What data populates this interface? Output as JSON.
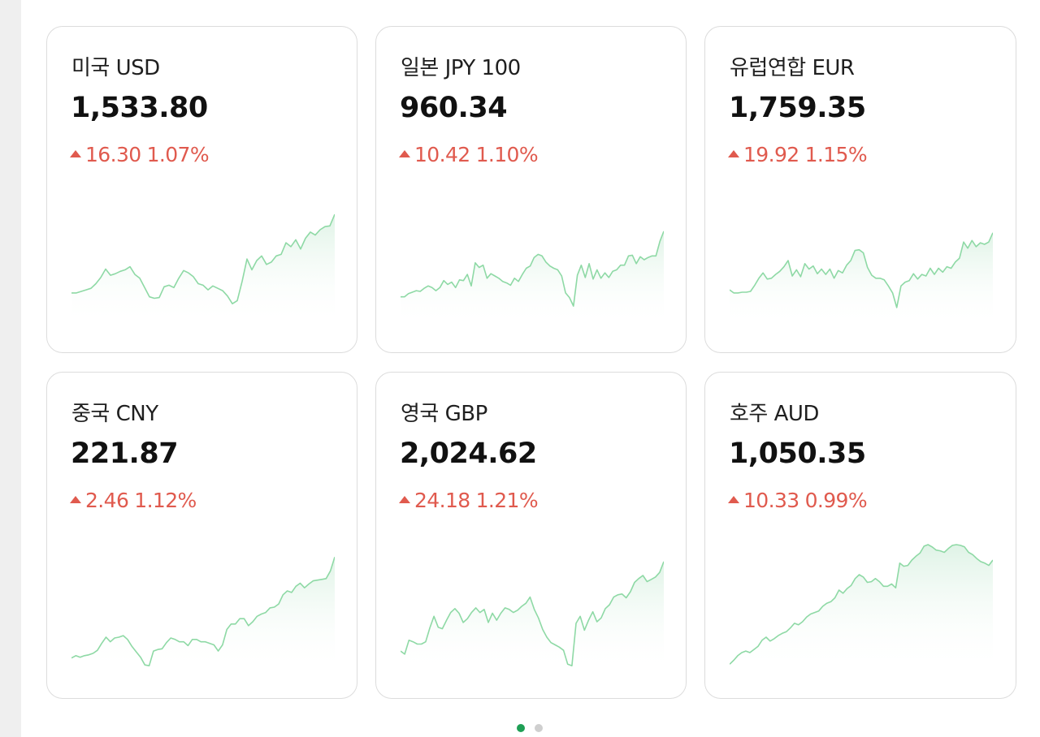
{
  "colors": {
    "up": "#e05a4e",
    "line": "#8ed9a5",
    "fill": "#dff3e6",
    "dot_active": "#1f9f55",
    "dot_inactive": "#cfcfcf"
  },
  "cards": [
    {
      "title": "미국 USD",
      "rate": "1,533.80",
      "change": "16.30",
      "change_pct": "1.07%",
      "direction": "up",
      "trend": [
        38,
        38,
        40,
        42,
        44,
        50,
        58,
        69,
        61,
        63,
        66,
        68,
        72,
        62,
        57,
        45,
        33,
        31,
        32,
        46,
        48,
        45,
        57,
        67,
        64,
        59,
        50,
        48,
        42,
        47,
        44,
        41,
        34,
        24,
        28,
        53,
        82,
        68,
        80,
        86,
        75,
        78,
        86,
        88,
        103,
        98,
        107,
        95,
        109,
        117,
        113,
        120,
        124,
        125,
        140
      ]
    },
    {
      "title": "일본 JPY 100",
      "rate": "960.34",
      "change": "10.42",
      "change_pct": "1.10%",
      "direction": "up",
      "trend": [
        33,
        33,
        37,
        39,
        41,
        40,
        44,
        47,
        45,
        41,
        45,
        54,
        49,
        52,
        45,
        55,
        54,
        62,
        47,
        77,
        71,
        74,
        57,
        63,
        60,
        57,
        53,
        51,
        48,
        57,
        53,
        62,
        70,
        73,
        84,
        88,
        86,
        78,
        73,
        70,
        68,
        60,
        38,
        32,
        21,
        61,
        74,
        58,
        76,
        56,
        68,
        57,
        64,
        58,
        66,
        68,
        74,
        74,
        86,
        87,
        76,
        85,
        81,
        84,
        86,
        86,
        105,
        118
      ]
    },
    {
      "title": "유럽연합 EUR",
      "rate": "1,759.35",
      "change": "19.92",
      "change_pct": "1.15%",
      "direction": "up",
      "trend": [
        42,
        38,
        38,
        39,
        39,
        40,
        48,
        57,
        64,
        56,
        57,
        62,
        66,
        72,
        80,
        60,
        68,
        59,
        76,
        69,
        73,
        63,
        69,
        62,
        69,
        57,
        67,
        64,
        74,
        80,
        93,
        94,
        90,
        71,
        61,
        57,
        57,
        55,
        47,
        38,
        19,
        47,
        52,
        54,
        63,
        56,
        62,
        60,
        70,
        62,
        70,
        65,
        72,
        70,
        78,
        83,
        104,
        96,
        106,
        98,
        103,
        101,
        104,
        116
      ]
    },
    {
      "title": "중국 CNY",
      "rate": "221.87",
      "change": "2.46",
      "change_pct": "1.12%",
      "direction": "up",
      "trend": [
        13,
        16,
        14,
        16,
        17,
        19,
        23,
        32,
        40,
        34,
        39,
        40,
        42,
        37,
        28,
        21,
        14,
        4,
        3,
        22,
        24,
        25,
        33,
        39,
        37,
        34,
        34,
        29,
        37,
        37,
        34,
        34,
        32,
        30,
        22,
        30,
        50,
        57,
        57,
        64,
        64,
        55,
        60,
        67,
        70,
        72,
        78,
        79,
        83,
        95,
        100,
        98,
        106,
        110,
        104,
        109,
        113,
        114,
        115,
        116,
        126,
        144
      ]
    },
    {
      "title": "영국 GBP",
      "rate": "2,024.62",
      "change": "24.18",
      "change_pct": "1.21%",
      "direction": "up",
      "trend": [
        22,
        18,
        36,
        34,
        31,
        31,
        34,
        52,
        67,
        53,
        51,
        62,
        72,
        77,
        71,
        59,
        64,
        72,
        78,
        72,
        76,
        59,
        71,
        62,
        71,
        78,
        76,
        72,
        75,
        80,
        84,
        92,
        76,
        65,
        50,
        40,
        33,
        30,
        27,
        23,
        5,
        3,
        58,
        67,
        49,
        62,
        73,
        60,
        65,
        77,
        82,
        92,
        95,
        96,
        91,
        99,
        111,
        116,
        120,
        112,
        115,
        118,
        124,
        138
      ]
    },
    {
      "title": "호주 AUD",
      "rate": "1,050.35",
      "change": "10.33",
      "change_pct": "0.99%",
      "direction": "up",
      "trend": [
        5,
        10,
        16,
        20,
        22,
        20,
        24,
        28,
        36,
        40,
        35,
        38,
        42,
        45,
        47,
        52,
        58,
        56,
        60,
        66,
        70,
        72,
        74,
        80,
        84,
        86,
        91,
        101,
        97,
        103,
        107,
        116,
        121,
        118,
        111,
        112,
        116,
        112,
        106,
        106,
        109,
        104,
        136,
        132,
        133,
        140,
        145,
        149,
        158,
        160,
        157,
        153,
        152,
        150,
        155,
        159,
        160,
        159,
        157,
        150,
        147,
        142,
        138,
        136,
        133,
        140
      ]
    }
  ],
  "pager": {
    "total": 2,
    "active": 0
  }
}
